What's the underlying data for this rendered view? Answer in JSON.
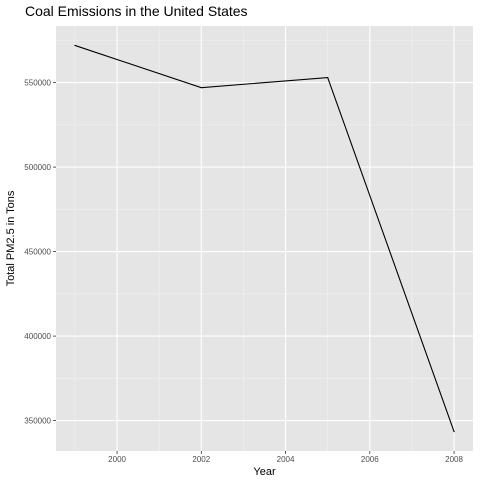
{
  "chart_data": {
    "type": "line",
    "title": "Coal Emissions in the United States",
    "xlabel": "Year",
    "ylabel": "Total PM2.5 in Tons",
    "x": [
      1999,
      2002,
      2005,
      2008
    ],
    "values": [
      572000,
      547000,
      553000,
      343500
    ],
    "xlim": [
      1998.55,
      2008.45
    ],
    "ylim": [
      332000,
      583500
    ],
    "xticks": [
      2000,
      2002,
      2004,
      2006,
      2008
    ],
    "xtick_labels": [
      "2000",
      "2002",
      "2004",
      "2006",
      "2008"
    ],
    "yticks": [
      350000,
      400000,
      450000,
      500000,
      550000
    ],
    "ytick_labels": [
      "350000",
      "400000",
      "450000",
      "500000",
      "550000"
    ],
    "grid": true,
    "background_color": "#e5e5e5",
    "line_color": "#000000"
  }
}
